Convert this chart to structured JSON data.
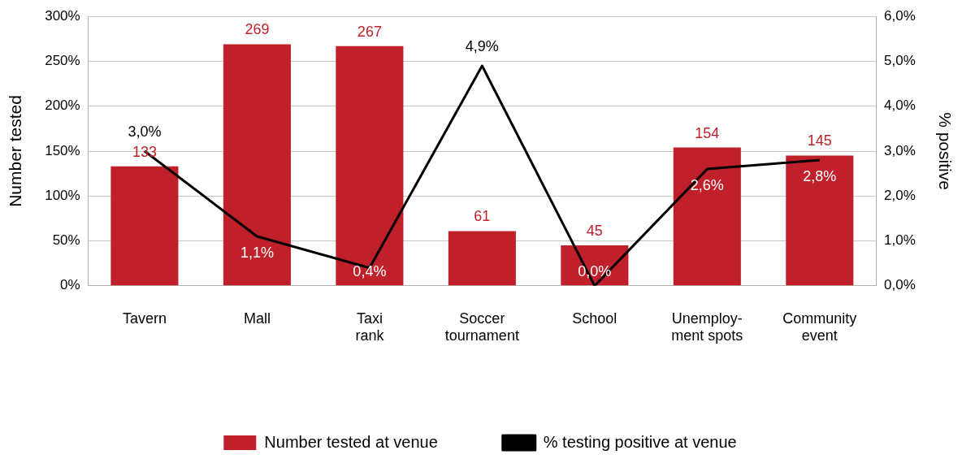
{
  "chart_data": {
    "type": "bar",
    "categories": [
      "Tavern",
      "Mall",
      "Taxi\nrank",
      "Soccer\ntournament",
      "School",
      "Unemploy-\nment spots",
      "Community\nevent"
    ],
    "ylabel": "Number tested",
    "y2label": "% positive",
    "ylim": [
      0,
      300
    ],
    "yticks": [
      {
        "value": 0,
        "label": "0%"
      },
      {
        "value": 50,
        "label": "50%"
      },
      {
        "value": 100,
        "label": "100%"
      },
      {
        "value": 150,
        "label": "150%"
      },
      {
        "value": 200,
        "label": "200%"
      },
      {
        "value": 250,
        "label": "250%"
      },
      {
        "value": 300,
        "label": "300%"
      }
    ],
    "y2lim": [
      0,
      6
    ],
    "y2ticks": [
      {
        "value": 0,
        "label": "0,0%"
      },
      {
        "value": 1,
        "label": "1,0%"
      },
      {
        "value": 2,
        "label": "2,0%"
      },
      {
        "value": 3,
        "label": "3,0%"
      },
      {
        "value": 4,
        "label": "4,0%"
      },
      {
        "value": 5,
        "label": "5,0%"
      },
      {
        "value": 6,
        "label": "6,0%"
      }
    ],
    "grid": "y",
    "legend": "bottom",
    "marker": "none",
    "series": [
      {
        "name": "Number tested at venue",
        "color": "#c0202a",
        "values": [
          133,
          269,
          267,
          61,
          45,
          154,
          145
        ],
        "value_labels": [
          "133",
          "269",
          "267",
          "61",
          "45",
          "154",
          "145"
        ]
      },
      {
        "name": "% testing positive at venue",
        "type": "line",
        "axis": "y2",
        "color": "#000000",
        "line_style": "solid",
        "values": [
          3.0,
          1.1,
          0.4,
          4.9,
          0.0,
          2.6,
          2.8
        ],
        "value_labels": [
          "3,0%",
          "1,1%",
          "0,4%",
          "4,9%",
          "0,0%",
          "2,6%",
          "2,8%"
        ]
      }
    ]
  }
}
